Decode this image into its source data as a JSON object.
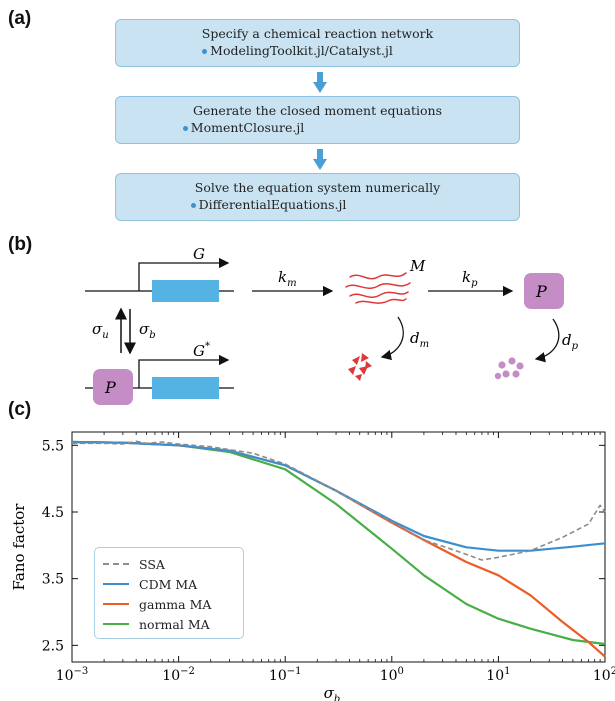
{
  "panels": {
    "a": "(a)",
    "b": "(b)",
    "c": "(c)"
  },
  "workflow": [
    {
      "title": "Specify a chemical reaction network",
      "package": "ModelingToolkit.jl/Catalyst.jl"
    },
    {
      "title": "Generate the closed moment equations",
      "package": "MomentClosure.jl"
    },
    {
      "title": "Solve the equation system numerically",
      "package": "DifferentialEquations.jl"
    }
  ],
  "network": {
    "gene_on": "G",
    "gene_off": "G",
    "gene_off_sup": "*",
    "protein": "P",
    "protein_bound": "P",
    "mrna": "M",
    "rates": {
      "km": {
        "base": "k",
        "sub": "m"
      },
      "kp": {
        "base": "k",
        "sub": "p"
      },
      "dm": {
        "base": "d",
        "sub": "m"
      },
      "dp": {
        "base": "d",
        "sub": "p"
      },
      "su": {
        "base": "σ",
        "sub": "u"
      },
      "sb": {
        "base": "σ",
        "sub": "b"
      }
    }
  },
  "colors": {
    "box_fill": "#c9e3f2",
    "box_border": "#8fc3df",
    "arrow": "#4a9fd6",
    "gene": "#55b3e3",
    "protein": "#c58dc6",
    "mrna": "#e0383a",
    "ssa": "#8c8c8c",
    "cdm": "#3b8fd0",
    "gamma": "#ec5c28",
    "normal": "#48ae46"
  },
  "chart_data": {
    "type": "line",
    "title": "",
    "xlabel_base": "σ",
    "xlabel_sub": "b",
    "ylabel": "Fano factor",
    "xscale": "log",
    "xlim": [
      0.001,
      100
    ],
    "ylim": [
      2.25,
      5.7
    ],
    "xticks": [
      {
        "value": 0.001,
        "base": "10",
        "exp": "−3"
      },
      {
        "value": 0.01,
        "base": "10",
        "exp": "−2"
      },
      {
        "value": 0.1,
        "base": "10",
        "exp": "−1"
      },
      {
        "value": 1,
        "base": "10",
        "exp": "0"
      },
      {
        "value": 10,
        "base": "10",
        "exp": "1"
      },
      {
        "value": 100,
        "base": "10",
        "exp": "2"
      }
    ],
    "yticks": [
      2.5,
      3.5,
      4.5,
      5.5
    ],
    "ytick_labels": [
      "2.5",
      "3.5",
      "4.5",
      "5.5"
    ],
    "legend_position": "lower-left",
    "series": [
      {
        "name": "SSA",
        "style": "dashed",
        "color": "#8c8c8c",
        "x": [
          0.001,
          0.002,
          0.003,
          0.004,
          0.005,
          0.007,
          0.01,
          0.02,
          0.05,
          0.1,
          0.2,
          0.5,
          1,
          2,
          4,
          7,
          10,
          20,
          40,
          70,
          90,
          100
        ],
        "y": [
          5.53,
          5.53,
          5.52,
          5.56,
          5.53,
          5.55,
          5.52,
          5.48,
          5.38,
          5.22,
          4.97,
          4.62,
          4.35,
          4.08,
          3.92,
          3.78,
          3.82,
          3.92,
          4.12,
          4.32,
          4.6,
          4.5
        ]
      },
      {
        "name": "CDM MA",
        "style": "solid",
        "color": "#3b8fd0",
        "x": [
          0.001,
          0.003,
          0.01,
          0.03,
          0.1,
          0.3,
          1,
          2,
          5,
          10,
          20,
          50,
          100
        ],
        "y": [
          5.55,
          5.54,
          5.5,
          5.42,
          5.2,
          4.82,
          4.37,
          4.14,
          3.97,
          3.92,
          3.92,
          3.98,
          4.03
        ]
      },
      {
        "name": "gamma MA",
        "style": "solid",
        "color": "#ec5c28",
        "x": [
          0.001,
          0.003,
          0.01,
          0.03,
          0.1,
          0.3,
          1,
          2,
          5,
          10,
          20,
          40,
          70,
          100
        ],
        "y": [
          5.55,
          5.54,
          5.5,
          5.42,
          5.2,
          4.82,
          4.34,
          4.08,
          3.75,
          3.55,
          3.25,
          2.85,
          2.55,
          2.33
        ]
      },
      {
        "name": "normal MA",
        "style": "solid",
        "color": "#48ae46",
        "x": [
          0.001,
          0.003,
          0.01,
          0.03,
          0.1,
          0.3,
          1,
          2,
          5,
          10,
          20,
          50,
          100
        ],
        "y": [
          5.55,
          5.54,
          5.5,
          5.4,
          5.14,
          4.62,
          3.95,
          3.55,
          3.12,
          2.9,
          2.75,
          2.58,
          2.52
        ]
      }
    ]
  }
}
